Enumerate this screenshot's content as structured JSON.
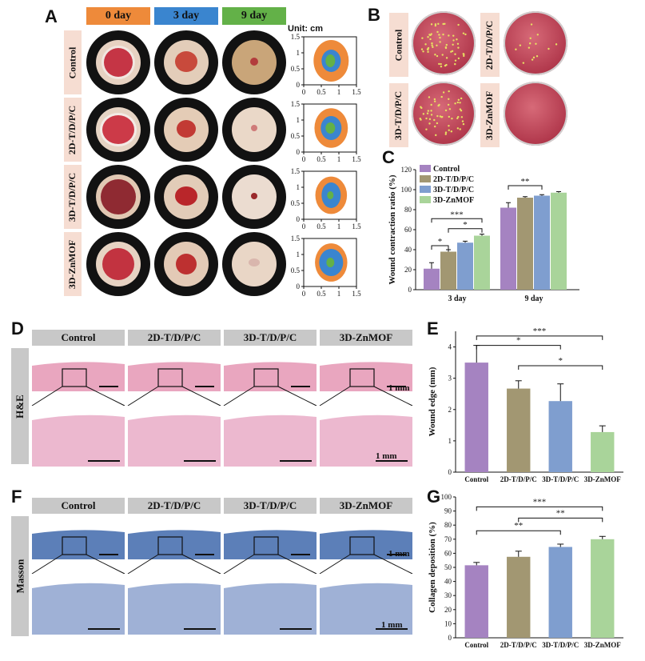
{
  "panels": {
    "A": "A",
    "B": "B",
    "C": "C",
    "D": "D",
    "E": "E",
    "F": "F",
    "G": "G"
  },
  "panelA": {
    "days": [
      "0 day",
      "3 day",
      "9 day"
    ],
    "day_colors": [
      "#ee8a3a",
      "#3a85cf",
      "#63b148"
    ],
    "groups": [
      "Control",
      "2D-T/D/P/C",
      "3D-T/D/P/C",
      "3D-ZnMOF"
    ],
    "unit_label": "Unit: cm",
    "axis_ticks": [
      "0",
      "0.5",
      "1",
      "1.5"
    ],
    "trace_colors": [
      "#ee8a3a",
      "#3a85cf",
      "#63b148"
    ]
  },
  "panelB": {
    "groups": [
      "Control",
      "2D-T/D/P/C",
      "3D-T/D/P/C",
      "3D-ZnMOF"
    ]
  },
  "panelD": {
    "groups": [
      "Control",
      "2D-T/D/P/C",
      "3D-T/D/P/C",
      "3D-ZnMOF"
    ],
    "stain": "H&E",
    "scale_label": "1 mm"
  },
  "panelF": {
    "groups": [
      "Control",
      "2D-T/D/P/C",
      "3D-T/D/P/C",
      "3D-ZnMOF"
    ],
    "stain": "Masson",
    "scale_label": "1 mm"
  },
  "chart_data": [
    {
      "id": "C",
      "type": "bar",
      "categories": [
        "3 day",
        "9 day"
      ],
      "series": [
        {
          "name": "Control",
          "color": "#a583c1",
          "values": [
            21,
            82
          ],
          "errors": [
            6,
            5
          ]
        },
        {
          "name": "2D-T/D/P/C",
          "color": "#a29772",
          "values": [
            38,
            92
          ],
          "errors": [
            2,
            1
          ]
        },
        {
          "name": "3D-T/D/P/C",
          "color": "#7f9ecf",
          "values": [
            47,
            94
          ],
          "errors": [
            1.5,
            1
          ]
        },
        {
          "name": "3D-ZnMOF",
          "color": "#a9d49a",
          "values": [
            54,
            97
          ],
          "errors": [
            1.5,
            1
          ]
        }
      ],
      "ylabel": "Wound contraction ratio (%)",
      "ylim": [
        0,
        120
      ],
      "yticks": [
        0,
        20,
        40,
        60,
        80,
        100,
        120
      ],
      "legend": "top-left",
      "significance": [
        {
          "from": [
            0,
            0
          ],
          "to": [
            0,
            1
          ],
          "label": "*"
        },
        {
          "from": [
            0,
            1
          ],
          "to": [
            0,
            3
          ],
          "label": "*"
        },
        {
          "from": [
            0,
            0
          ],
          "to": [
            0,
            3
          ],
          "label": "***"
        },
        {
          "from": [
            1,
            0
          ],
          "to": [
            1,
            2
          ],
          "label": "**"
        }
      ]
    },
    {
      "id": "E",
      "type": "bar",
      "categories": [
        "Control",
        "2D-T/D/P/C",
        "3D-T/D/P/C",
        "3D-ZnMOF"
      ],
      "colors": [
        "#a583c1",
        "#a29772",
        "#7f9ecf",
        "#a9d49a"
      ],
      "values": [
        3.5,
        2.67,
        2.27,
        1.28
      ],
      "errors": [
        0.55,
        0.25,
        0.55,
        0.2
      ],
      "ylabel": "Wound edge (mm)",
      "ylim": [
        0,
        4.5
      ],
      "yticks": [
        0,
        1,
        2,
        3,
        4
      ],
      "significance": [
        {
          "from": 0,
          "to": 2,
          "label": "*",
          "y": 4.05
        },
        {
          "from": 0,
          "to": 3,
          "label": "***",
          "y": 4.35
        },
        {
          "from": 1,
          "to": 3,
          "label": "*",
          "y": 3.4
        }
      ]
    },
    {
      "id": "G",
      "type": "bar",
      "categories": [
        "Control",
        "2D-T/D/P/C",
        "3D-T/D/P/C",
        "3D-ZnMOF"
      ],
      "colors": [
        "#a583c1",
        "#a29772",
        "#7f9ecf",
        "#a9d49a"
      ],
      "values": [
        51.5,
        57.5,
        64.5,
        70
      ],
      "errors": [
        2,
        4,
        2,
        2
      ],
      "ylabel": "Collagen deposition (%)",
      "ylim": [
        0,
        100
      ],
      "yticks": [
        0,
        10,
        20,
        30,
        40,
        50,
        60,
        70,
        80,
        90,
        100
      ],
      "significance": [
        {
          "from": 0,
          "to": 3,
          "label": "***",
          "y": 93
        },
        {
          "from": 1,
          "to": 3,
          "label": "**",
          "y": 85
        },
        {
          "from": 0,
          "to": 2,
          "label": "**",
          "y": 76
        }
      ]
    }
  ]
}
